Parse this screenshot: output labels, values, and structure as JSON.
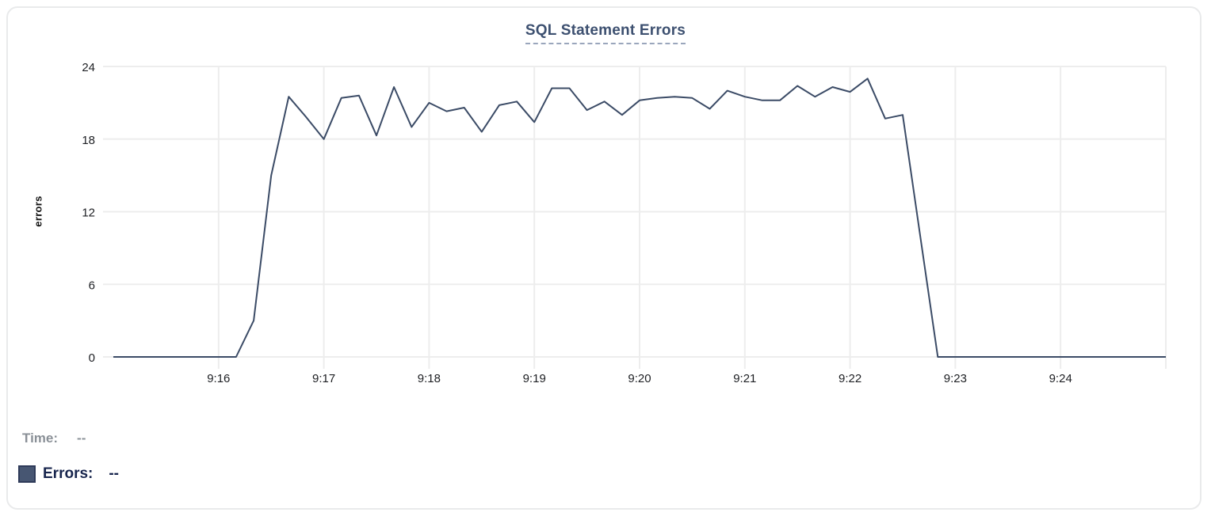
{
  "chart": {
    "title": "SQL Statement Errors",
    "ylabel": "errors"
  },
  "tooltip": {
    "time_label": "Time:",
    "time_value": "--",
    "errors_label": "Errors:",
    "errors_value": "--"
  },
  "chart_data": {
    "type": "line",
    "title": "SQL Statement Errors",
    "xlabel": "",
    "ylabel": "errors",
    "ylim": [
      0,
      24
    ],
    "y_ticks": [
      0,
      6,
      12,
      18,
      24
    ],
    "x_range": [
      "9:15:00",
      "9:25:00"
    ],
    "grid": true,
    "legend_position": "bottom-left",
    "colors": {
      "line": "#3b4b66",
      "grid": "#ededed",
      "swatch": "#475672",
      "title": "#3d5070",
      "tick_text": "#1d1f23"
    },
    "x_gridlines": [
      {
        "time": "9:16",
        "label": "9:16"
      },
      {
        "time": "9:17",
        "label": "9:17"
      },
      {
        "time": "9:18",
        "label": "9:18"
      },
      {
        "time": "9:19",
        "label": "9:19"
      },
      {
        "time": "9:20",
        "label": "9:20"
      },
      {
        "time": "9:21",
        "label": "9:21"
      },
      {
        "time": "9:22",
        "label": "9:22"
      },
      {
        "time": "9:23",
        "label": "9:23"
      },
      {
        "time": "9:24",
        "label": "9:24"
      },
      {
        "time": "9:25",
        "label": ""
      }
    ],
    "series": [
      {
        "name": "Errors",
        "points": [
          [
            "9:15:00",
            0
          ],
          [
            "9:15:10",
            0
          ],
          [
            "9:15:20",
            0
          ],
          [
            "9:15:30",
            0
          ],
          [
            "9:15:40",
            0
          ],
          [
            "9:15:50",
            0
          ],
          [
            "9:16:00",
            0
          ],
          [
            "9:16:10",
            0
          ],
          [
            "9:16:20",
            3
          ],
          [
            "9:16:30",
            15
          ],
          [
            "9:16:40",
            21.5
          ],
          [
            "9:16:50",
            19.8
          ],
          [
            "9:17:00",
            18
          ],
          [
            "9:17:10",
            21.4
          ],
          [
            "9:17:20",
            21.6
          ],
          [
            "9:17:30",
            18.3
          ],
          [
            "9:17:40",
            22.3
          ],
          [
            "9:17:50",
            19
          ],
          [
            "9:18:00",
            21
          ],
          [
            "9:18:10",
            20.3
          ],
          [
            "9:18:20",
            20.6
          ],
          [
            "9:18:30",
            18.6
          ],
          [
            "9:18:40",
            20.8
          ],
          [
            "9:18:50",
            21.1
          ],
          [
            "9:19:00",
            19.4
          ],
          [
            "9:19:10",
            22.2
          ],
          [
            "9:19:20",
            22.2
          ],
          [
            "9:19:30",
            20.4
          ],
          [
            "9:19:40",
            21.1
          ],
          [
            "9:19:50",
            20
          ],
          [
            "9:20:00",
            21.2
          ],
          [
            "9:20:10",
            21.4
          ],
          [
            "9:20:20",
            21.5
          ],
          [
            "9:20:30",
            21.4
          ],
          [
            "9:20:40",
            20.5
          ],
          [
            "9:20:50",
            22
          ],
          [
            "9:21:00",
            21.5
          ],
          [
            "9:21:10",
            21.2
          ],
          [
            "9:21:20",
            21.2
          ],
          [
            "9:21:30",
            22.4
          ],
          [
            "9:21:40",
            21.5
          ],
          [
            "9:21:50",
            22.3
          ],
          [
            "9:22:00",
            21.9
          ],
          [
            "9:22:10",
            23
          ],
          [
            "9:22:20",
            19.7
          ],
          [
            "9:22:30",
            20
          ],
          [
            "9:22:40",
            10
          ],
          [
            "9:22:50",
            0
          ],
          [
            "9:23:00",
            0
          ],
          [
            "9:23:10",
            0
          ],
          [
            "9:23:20",
            0
          ],
          [
            "9:23:30",
            0
          ],
          [
            "9:23:40",
            0
          ],
          [
            "9:23:50",
            0
          ],
          [
            "9:24:00",
            0
          ],
          [
            "9:24:10",
            0
          ],
          [
            "9:24:20",
            0
          ],
          [
            "9:24:30",
            0
          ],
          [
            "9:24:40",
            0
          ],
          [
            "9:24:50",
            0
          ],
          [
            "9:25:00",
            0
          ]
        ]
      }
    ]
  }
}
